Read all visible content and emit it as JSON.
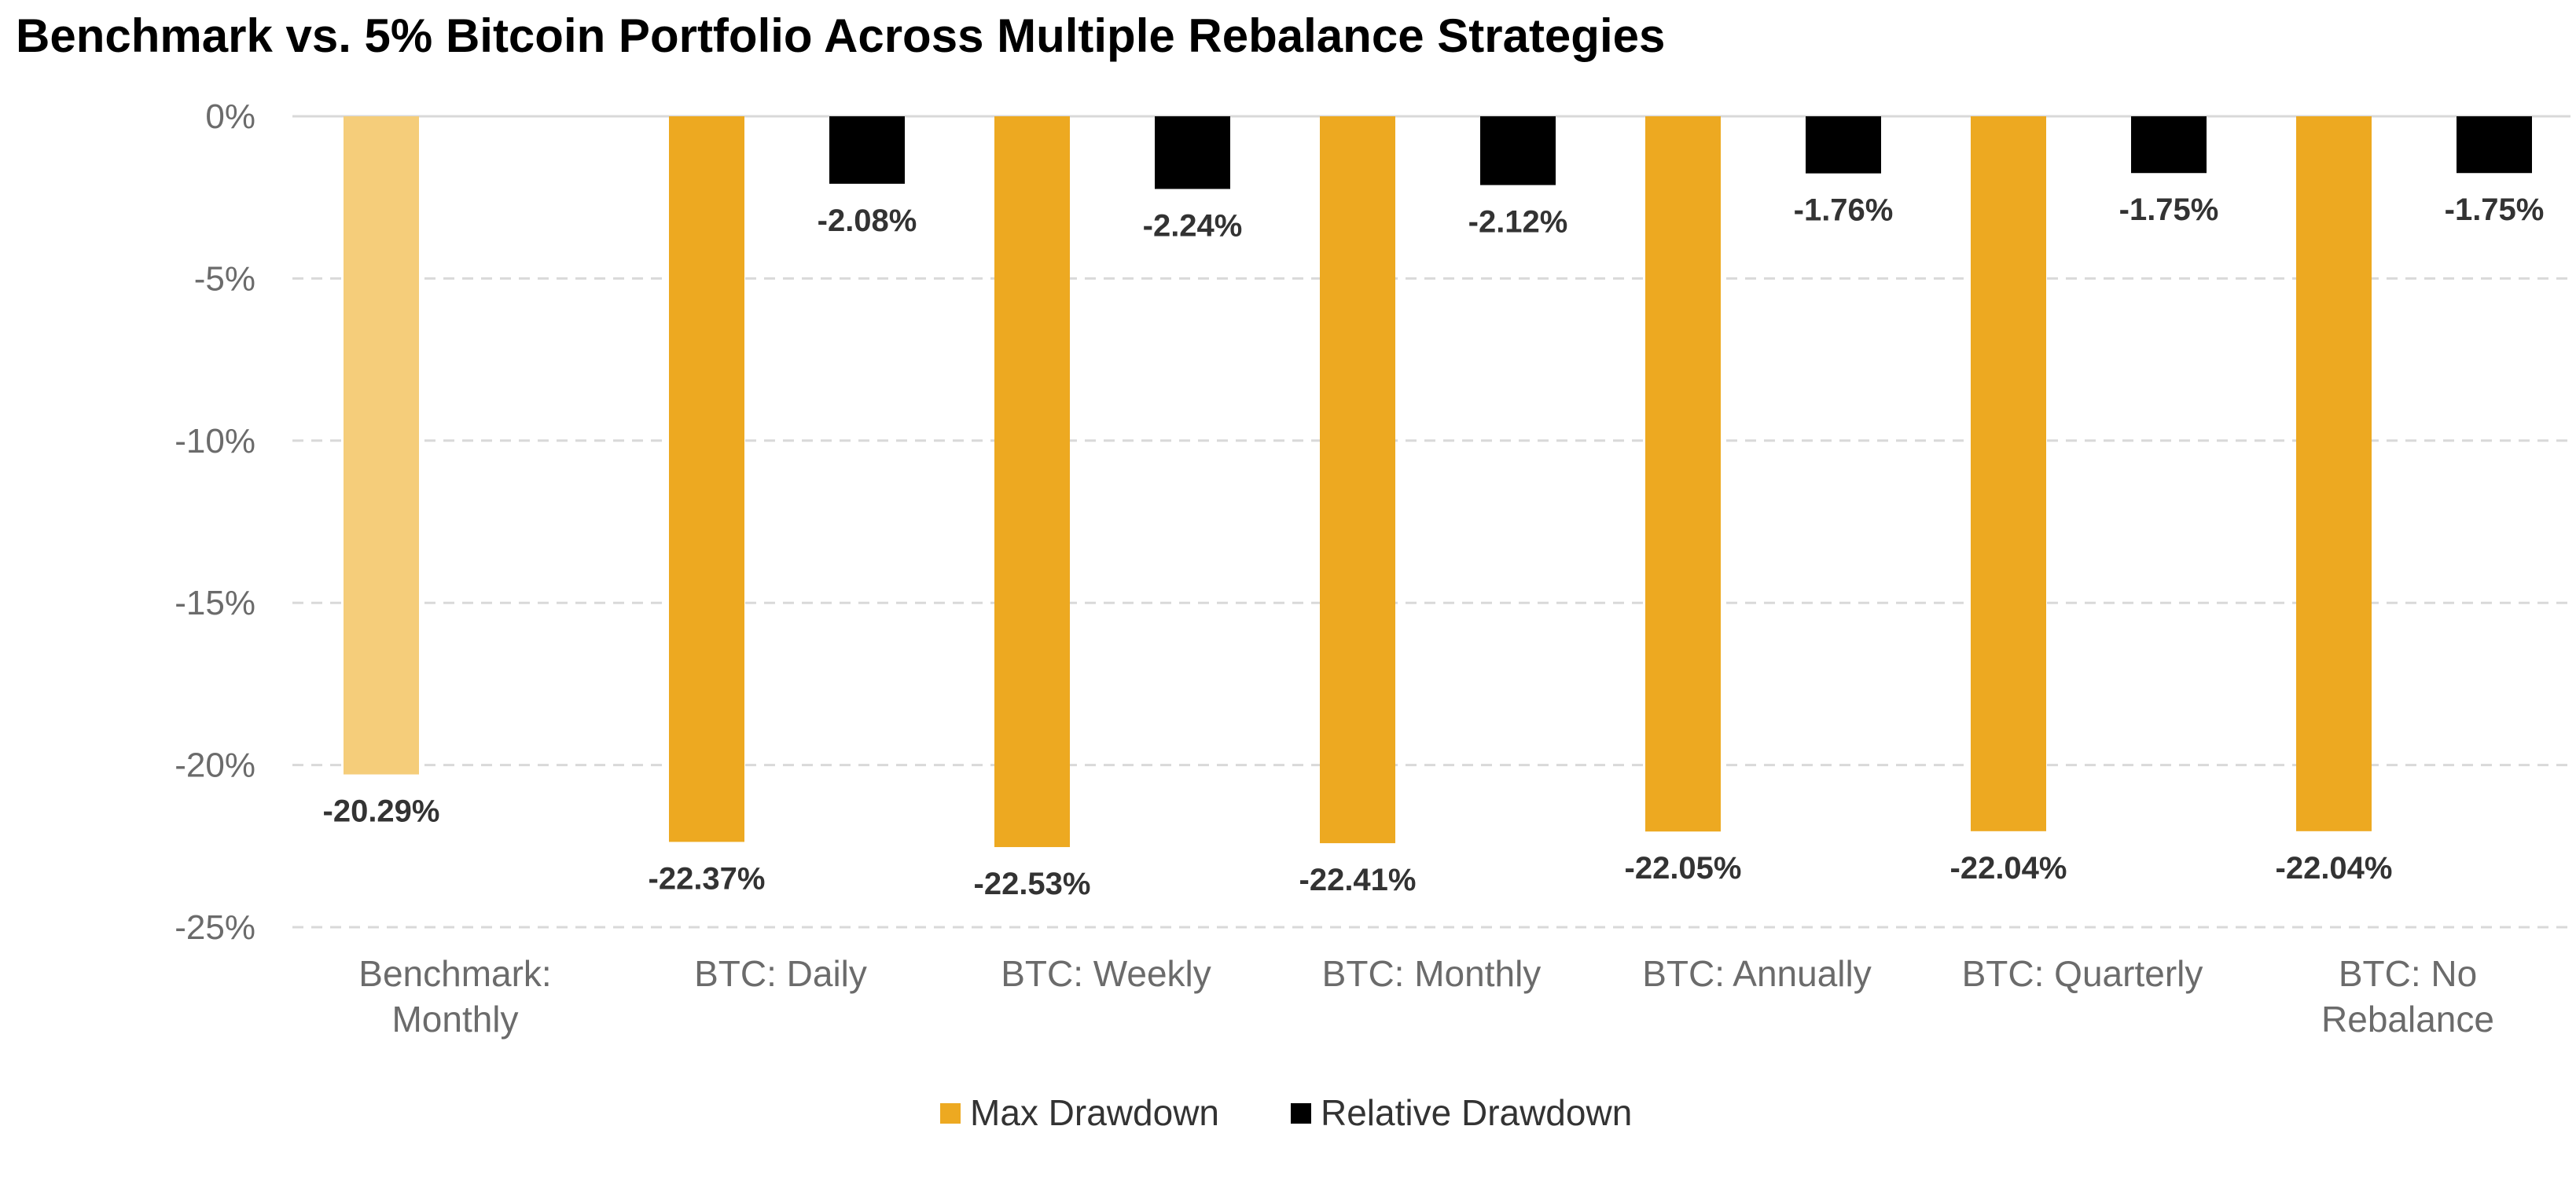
{
  "chart_data": {
    "type": "bar",
    "title": "Benchmark vs. 5% Bitcoin Portfolio Across Multiple Rebalance Strategies",
    "xlabel": "",
    "ylabel": "",
    "ylim": [
      -25,
      0
    ],
    "yticks": [
      0,
      -5,
      -10,
      -15,
      -20,
      -25
    ],
    "ytick_labels": [
      "0%",
      "-5%",
      "-10%",
      "-15%",
      "-20%",
      "-25%"
    ],
    "grid": "horizontal dashed",
    "legend_position": "bottom-center",
    "categories": [
      [
        "Benchmark:",
        "Monthly"
      ],
      [
        "BTC: Daily"
      ],
      [
        "BTC: Weekly"
      ],
      [
        "BTC: Monthly"
      ],
      [
        "BTC: Annually"
      ],
      [
        "BTC: Quarterly"
      ],
      [
        "BTC: No",
        "Rebalance"
      ]
    ],
    "series": [
      {
        "name": "Max Drawdown",
        "color": "#EDA921",
        "values": [
          -20.29,
          -22.37,
          -22.53,
          -22.41,
          -22.05,
          -22.04,
          -22.04
        ],
        "labels": [
          "-20.29%",
          "-22.37%",
          "-22.53%",
          "-22.41%",
          "-22.05%",
          "-22.04%",
          "-22.04%"
        ]
      },
      {
        "name": "Relative Drawdown",
        "color": "#000000",
        "values": [
          null,
          -2.08,
          -2.24,
          -2.12,
          -1.76,
          -1.75,
          -1.75
        ],
        "labels": [
          null,
          "-2.08%",
          "-2.24%",
          "-2.12%",
          "-1.76%",
          "-1.75%",
          "-1.75%"
        ]
      }
    ],
    "benchmark_bar_color": "#F5CD7A"
  }
}
